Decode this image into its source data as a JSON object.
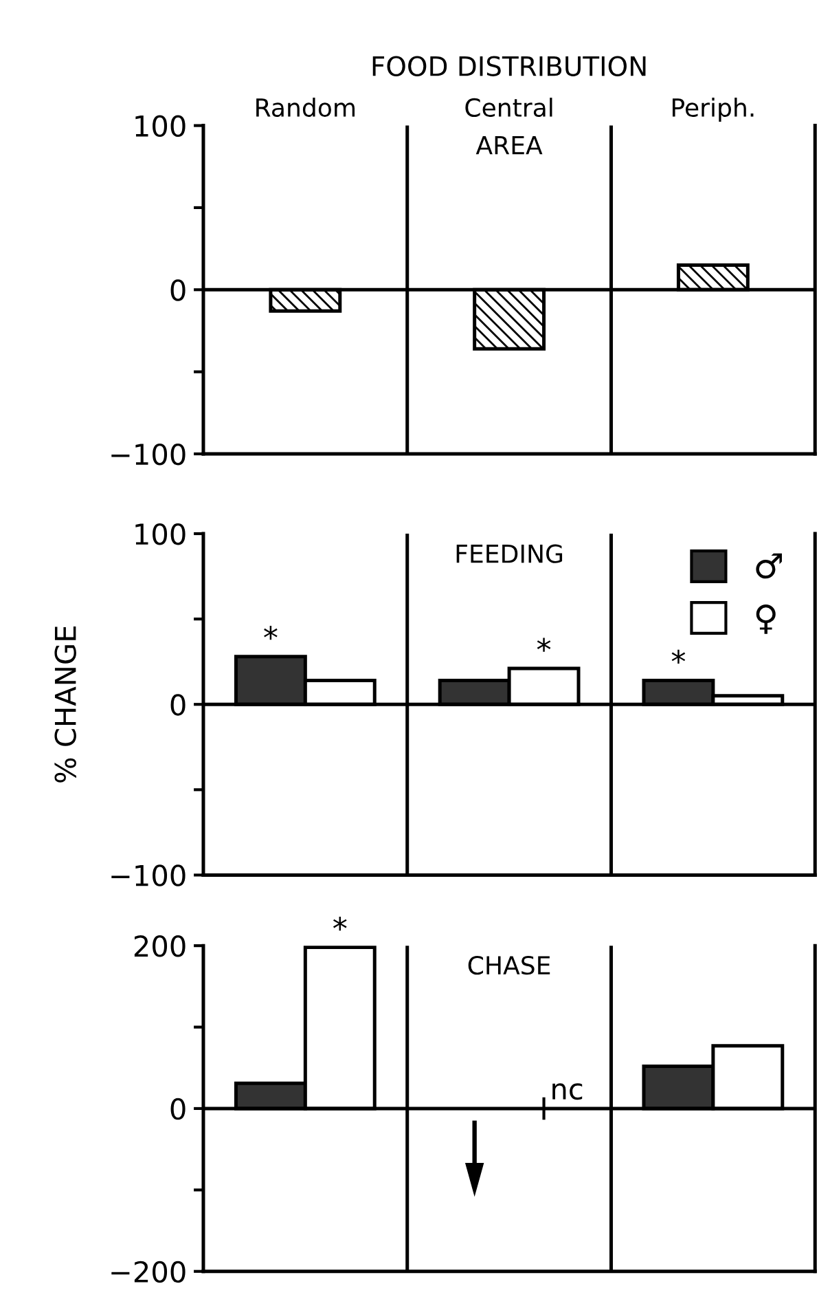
{
  "chart_data": [
    {
      "type": "bar",
      "title": "FOOD DISTRIBUTION",
      "subtitle": "AREA",
      "categories": [
        "Random",
        "Central",
        "Periph."
      ],
      "series": [
        {
          "color": "#000000",
          "values": [
            -13,
            -36,
            15
          ]
        }
      ],
      "ylim": [
        -100,
        100
      ],
      "yticks": [
        -100,
        {
          "value": -50,
          "label": null
        },
        0,
        {
          "value": 50,
          "label": null
        },
        100
      ],
      "ref_lines": [
        {
          "axis": "y",
          "value": 0
        }
      ]
    },
    {
      "type": "bar",
      "subtitle": "FEEDING",
      "ylabel": "% CHANGE",
      "categories": [
        "Random",
        "Central",
        "Periph."
      ],
      "series": [
        {
          "name": "♂",
          "color": "#333333",
          "values": [
            28,
            14,
            14
          ]
        },
        {
          "name": "♀",
          "color": "#ffffff",
          "values": [
            14,
            21,
            5
          ]
        }
      ],
      "ylim": [
        -100,
        100
      ],
      "yticks": [
        -100,
        {
          "value": -50,
          "label": null
        },
        0,
        {
          "value": 50,
          "label": null
        },
        100
      ],
      "tick_labels": "y",
      "legend": "top right",
      "annotations": [
        {
          "text": "*",
          "x": "Random",
          "y": 28
        },
        {
          "text": "*",
          "x": "Central",
          "y": 21
        },
        {
          "text": "*",
          "x": "Periph.",
          "y": 14
        }
      ],
      "ref_lines": [
        {
          "axis": "y",
          "value": 0
        }
      ]
    },
    {
      "type": "bar",
      "subtitle": "CHASE",
      "categories": [
        "Random",
        "Central",
        "Periph."
      ],
      "series": [
        {
          "color": "#333333",
          "values": [
            31,
            null,
            52
          ]
        },
        {
          "color": "#ffffff",
          "values": [
            198,
            null,
            77
          ]
        }
      ],
      "ylim": [
        -200,
        200
      ],
      "yticks": [
        -200,
        {
          "value": -100,
          "label": null
        },
        0,
        {
          "value": 100,
          "label": null
        },
        200
      ],
      "tick_labels": "y",
      "annotations": [
        {
          "text": "*",
          "x": "Random",
          "y": 198
        },
        {
          "text": "nc",
          "x": "Central",
          "y": 0
        }
      ],
      "ref_lines": [
        {
          "axis": "y",
          "value": 0
        }
      ]
    }
  ]
}
